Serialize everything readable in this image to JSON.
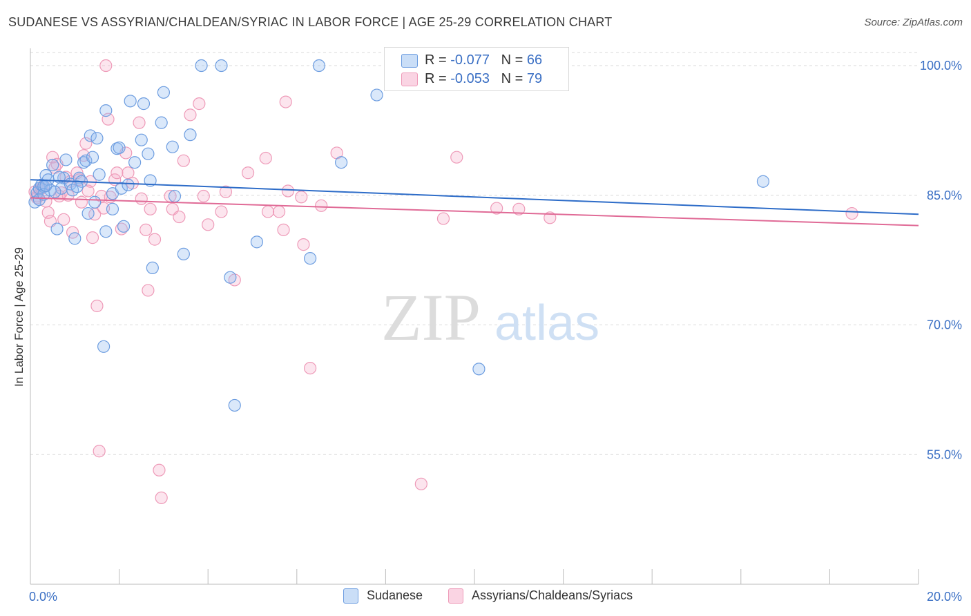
{
  "title": "SUDANESE VS ASSYRIAN/CHALDEAN/SYRIAC IN LABOR FORCE | AGE 25-29 CORRELATION CHART",
  "source": "Source: ZipAtlas.com",
  "watermark": {
    "zip": "ZIP",
    "atlas": "atlas"
  },
  "colors": {
    "blue": "#6d9de0",
    "blue_fill": "rgba(150,190,240,0.35)",
    "blue_line": "#2d6cc8",
    "pink": "#ee9ab8",
    "pink_fill": "rgba(245,170,200,0.30)",
    "pink_line": "#e06a96",
    "tick_text": "#3a6fc4",
    "grid": "#d8d8d8"
  },
  "legend": {
    "rows": [
      {
        "r_label": "R = ",
        "r_value": "-0.077",
        "n_label": "N = ",
        "n_value": "66"
      },
      {
        "r_label": "R = ",
        "r_value": "-0.053",
        "n_label": "N = ",
        "n_value": "79"
      }
    ]
  },
  "chart_data": {
    "type": "scatter",
    "title": "SUDANESE VS ASSYRIAN/CHALDEAN/SYRIAC IN LABOR FORCE | AGE 25-29 CORRELATION CHART",
    "xlabel": "",
    "ylabel": "In Labor Force | Age 25-29",
    "xlim": [
      0,
      20
    ],
    "ylim": [
      40,
      102
    ],
    "x_tick_labels": [
      "0.0%",
      "20.0%"
    ],
    "y_ticks": [
      55,
      70,
      85,
      100
    ],
    "y_tick_labels": [
      "55.0%",
      "70.0%",
      "85.0%",
      "100.0%"
    ],
    "grid": true,
    "legend_position": "top-center",
    "series": [
      {
        "name": "Sudanese",
        "color": "#6d9de0",
        "trend": {
          "x": [
            0,
            20
          ],
          "y": [
            86.8,
            82.8
          ]
        },
        "points": [
          [
            0.1,
            84.2
          ],
          [
            0.15,
            85.3
          ],
          [
            0.2,
            85.8
          ],
          [
            0.25,
            86.2
          ],
          [
            0.3,
            86.0
          ],
          [
            0.35,
            87.3
          ],
          [
            0.4,
            86.8
          ],
          [
            0.45,
            85.6
          ],
          [
            0.5,
            88.5
          ],
          [
            0.6,
            81.1
          ],
          [
            0.7,
            85.8
          ],
          [
            0.75,
            87.0
          ],
          [
            0.8,
            89.1
          ],
          [
            0.9,
            86.3
          ],
          [
            0.95,
            85.6
          ],
          [
            1.0,
            80.0
          ],
          [
            1.1,
            87.0
          ],
          [
            1.15,
            86.6
          ],
          [
            1.2,
            88.8
          ],
          [
            1.25,
            89.0
          ],
          [
            1.3,
            82.9
          ],
          [
            1.35,
            91.9
          ],
          [
            1.4,
            89.4
          ],
          [
            1.45,
            84.2
          ],
          [
            1.5,
            91.6
          ],
          [
            1.55,
            87.4
          ],
          [
            1.65,
            67.5
          ],
          [
            1.7,
            94.8
          ],
          [
            1.7,
            80.8
          ],
          [
            1.85,
            85.2
          ],
          [
            1.85,
            83.4
          ],
          [
            1.95,
            90.4
          ],
          [
            2.0,
            90.5
          ],
          [
            2.05,
            85.8
          ],
          [
            2.1,
            81.4
          ],
          [
            2.2,
            86.2
          ],
          [
            2.25,
            95.9
          ],
          [
            2.35,
            88.8
          ],
          [
            2.5,
            91.4
          ],
          [
            2.55,
            95.6
          ],
          [
            2.65,
            89.8
          ],
          [
            2.7,
            86.7
          ],
          [
            2.75,
            76.6
          ],
          [
            2.95,
            93.4
          ],
          [
            3.0,
            96.9
          ],
          [
            3.2,
            90.6
          ],
          [
            3.25,
            84.9
          ],
          [
            3.45,
            78.2
          ],
          [
            3.6,
            92.0
          ],
          [
            3.85,
            100.0
          ],
          [
            4.3,
            100.0
          ],
          [
            4.5,
            75.5
          ],
          [
            4.6,
            60.7
          ],
          [
            5.1,
            79.6
          ],
          [
            6.3,
            77.7
          ],
          [
            6.5,
            100.0
          ],
          [
            7.0,
            88.8
          ],
          [
            7.8,
            96.6
          ],
          [
            10.1,
            64.9
          ],
          [
            16.5,
            86.6
          ],
          [
            0.2,
            84.5
          ],
          [
            0.3,
            85.1
          ],
          [
            0.35,
            86.1
          ],
          [
            0.55,
            85.4
          ],
          [
            0.65,
            87.1
          ],
          [
            1.05,
            86.0
          ]
        ]
      },
      {
        "name": "Assyrians/Chaldeans/Syriacs",
        "color": "#ee9ab8",
        "trend": {
          "x": [
            0,
            20
          ],
          "y": [
            84.7,
            81.5
          ]
        },
        "points": [
          [
            0.1,
            85.4
          ],
          [
            0.15,
            84.9
          ],
          [
            0.2,
            85.6
          ],
          [
            0.25,
            85.8
          ],
          [
            0.3,
            86.1
          ],
          [
            0.35,
            84.3
          ],
          [
            0.4,
            83.0
          ],
          [
            0.45,
            82.0
          ],
          [
            0.5,
            89.4
          ],
          [
            0.55,
            88.2
          ],
          [
            0.6,
            88.6
          ],
          [
            0.7,
            85.3
          ],
          [
            0.75,
            82.2
          ],
          [
            0.8,
            87.1
          ],
          [
            0.85,
            85.0
          ],
          [
            0.9,
            86.6
          ],
          [
            0.95,
            80.7
          ],
          [
            1.05,
            87.6
          ],
          [
            1.1,
            86.8
          ],
          [
            1.15,
            84.2
          ],
          [
            1.2,
            89.6
          ],
          [
            1.25,
            91.0
          ],
          [
            1.3,
            85.5
          ],
          [
            1.35,
            86.6
          ],
          [
            1.4,
            80.1
          ],
          [
            1.45,
            82.8
          ],
          [
            1.5,
            72.2
          ],
          [
            1.55,
            55.4
          ],
          [
            1.6,
            84.9
          ],
          [
            1.65,
            83.5
          ],
          [
            1.75,
            93.8
          ],
          [
            1.8,
            84.8
          ],
          [
            1.9,
            86.8
          ],
          [
            1.95,
            87.6
          ],
          [
            2.05,
            81.1
          ],
          [
            2.15,
            89.9
          ],
          [
            2.2,
            87.6
          ],
          [
            2.3,
            86.4
          ],
          [
            2.45,
            93.4
          ],
          [
            2.5,
            84.6
          ],
          [
            2.6,
            81.0
          ],
          [
            2.65,
            74.0
          ],
          [
            2.7,
            83.4
          ],
          [
            2.8,
            79.9
          ],
          [
            2.9,
            53.2
          ],
          [
            2.95,
            50.0
          ],
          [
            3.15,
            84.9
          ],
          [
            3.2,
            83.4
          ],
          [
            3.35,
            82.5
          ],
          [
            3.45,
            89.0
          ],
          [
            3.6,
            94.3
          ],
          [
            3.8,
            95.6
          ],
          [
            3.9,
            84.9
          ],
          [
            4.0,
            81.6
          ],
          [
            4.3,
            83.1
          ],
          [
            4.4,
            85.4
          ],
          [
            4.6,
            75.2
          ],
          [
            4.9,
            87.6
          ],
          [
            5.3,
            89.3
          ],
          [
            5.35,
            83.1
          ],
          [
            5.6,
            83.1
          ],
          [
            5.7,
            81.0
          ],
          [
            5.75,
            95.8
          ],
          [
            5.8,
            85.5
          ],
          [
            6.1,
            84.8
          ],
          [
            6.15,
            79.3
          ],
          [
            6.3,
            65.0
          ],
          [
            6.55,
            83.8
          ],
          [
            6.9,
            89.9
          ],
          [
            8.8,
            51.6
          ],
          [
            9.3,
            82.3
          ],
          [
            9.6,
            89.4
          ],
          [
            10.5,
            83.5
          ],
          [
            11.0,
            83.4
          ],
          [
            11.7,
            82.4
          ],
          [
            18.5,
            82.9
          ],
          [
            0.15,
            84.7
          ],
          [
            0.65,
            84.9
          ],
          [
            1.7,
            100.0
          ]
        ]
      }
    ]
  },
  "bottom_legend": [
    {
      "label": "Sudanese"
    },
    {
      "label": "Assyrians/Chaldeans/Syriacs"
    }
  ]
}
